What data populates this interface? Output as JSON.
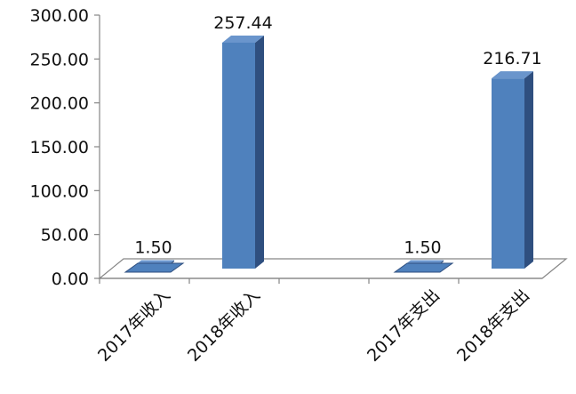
{
  "chart_data": {
    "type": "bar",
    "style": "3d-column",
    "categories": [
      "2017年收入",
      "2018年收入",
      "",
      "2017年支出",
      "2018年支出"
    ],
    "values": [
      1.5,
      257.44,
      null,
      1.5,
      216.71
    ],
    "data_labels": [
      "1.50",
      "257.44",
      "",
      "1.50",
      "216.71"
    ],
    "y_ticks": [
      "0.00",
      "50.00",
      "100.00",
      "150.00",
      "200.00",
      "250.00",
      "300.00"
    ],
    "ylim": [
      0,
      300
    ],
    "title": "",
    "xlabel": "",
    "ylabel": "",
    "grid": false,
    "legend": "none",
    "colors": {
      "bar_front": "#4f81bd",
      "bar_side": "#2f4f7f",
      "bar_top": "#6a95cc",
      "axis": "#868686",
      "floor": "#ffffff"
    }
  }
}
